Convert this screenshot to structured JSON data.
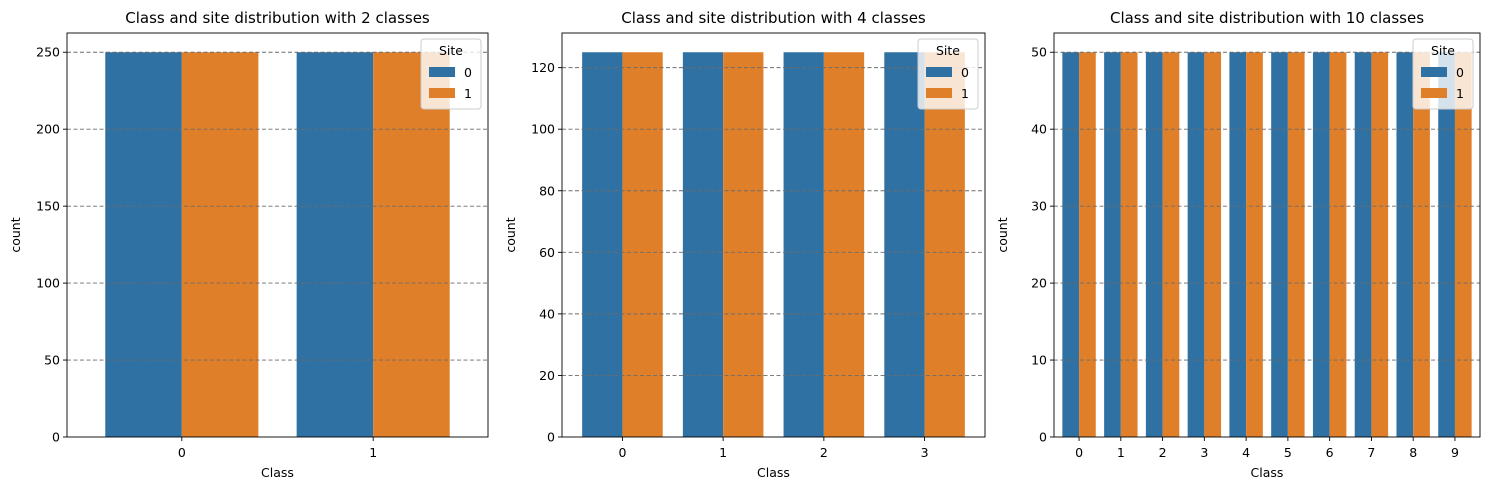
{
  "colors": {
    "site0": "#2f71a2",
    "site1": "#e07f2a",
    "grid": "#6b6b6b"
  },
  "chart_data": [
    {
      "type": "bar",
      "title": "Class and site distribution with 2 classes",
      "xlabel": "Class",
      "ylabel": "count",
      "categories": [
        "0",
        "1"
      ],
      "series": [
        {
          "name": "0",
          "values": [
            250,
            250
          ]
        },
        {
          "name": "1",
          "values": [
            250,
            250
          ]
        }
      ],
      "ylim": [
        0,
        262.5
      ],
      "yticks": [
        0,
        50,
        100,
        150,
        200,
        250
      ],
      "grid": true,
      "legend": {
        "title": "Site",
        "position": "top-right"
      }
    },
    {
      "type": "bar",
      "title": "Class and site distribution with 4 classes",
      "xlabel": "Class",
      "ylabel": "count",
      "categories": [
        "0",
        "1",
        "2",
        "3"
      ],
      "series": [
        {
          "name": "0",
          "values": [
            125,
            125,
            125,
            125
          ]
        },
        {
          "name": "1",
          "values": [
            125,
            125,
            125,
            125
          ]
        }
      ],
      "ylim": [
        0,
        131.25
      ],
      "yticks": [
        0,
        20,
        40,
        60,
        80,
        100,
        120
      ],
      "grid": true,
      "legend": {
        "title": "Site",
        "position": "top-right"
      }
    },
    {
      "type": "bar",
      "title": "Class and site distribution with 10 classes",
      "xlabel": "Class",
      "ylabel": "count",
      "categories": [
        "0",
        "1",
        "2",
        "3",
        "4",
        "5",
        "6",
        "7",
        "8",
        "9"
      ],
      "series": [
        {
          "name": "0",
          "values": [
            50,
            50,
            50,
            50,
            50,
            50,
            50,
            50,
            50,
            50
          ]
        },
        {
          "name": "1",
          "values": [
            50,
            50,
            50,
            50,
            50,
            50,
            50,
            50,
            50,
            50
          ]
        }
      ],
      "ylim": [
        0,
        52.5
      ],
      "yticks": [
        0,
        10,
        20,
        30,
        40,
        50
      ],
      "grid": true,
      "legend": {
        "title": "Site",
        "position": "top-right"
      }
    }
  ]
}
